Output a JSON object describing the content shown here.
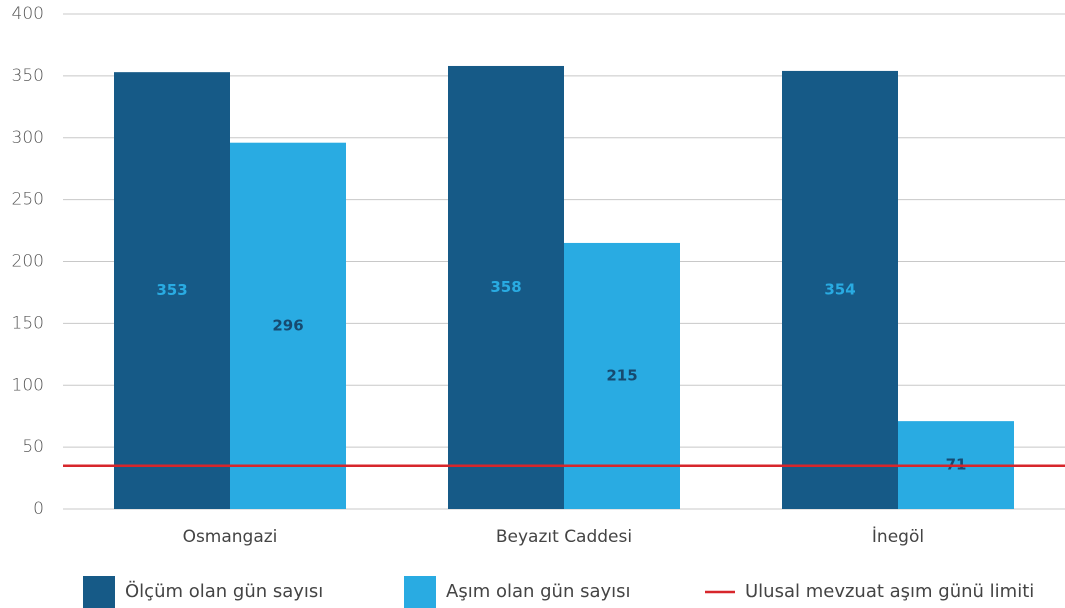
{
  "chart_data": {
    "type": "bar",
    "categories": [
      "Osmangazi",
      "Beyazıt Caddesi",
      "İnegöl"
    ],
    "series": [
      {
        "name": "Ölçüm olan gün sayısı",
        "color": "#165a87",
        "label_color": "#29abe2",
        "values": [
          353,
          358,
          354
        ]
      },
      {
        "name": "Aşım olan gün sayısı",
        "color": "#29abe2",
        "label_color": "#164a70",
        "values": [
          296,
          215,
          71
        ]
      }
    ],
    "reference_line": {
      "name": "Ulusal mevzuat aşım günü limiti",
      "value": 35,
      "color": "#d7262b"
    },
    "ylim": [
      0,
      400
    ],
    "yticks": [
      0,
      50,
      100,
      150,
      200,
      250,
      300,
      350,
      400
    ],
    "grid": true,
    "legend": "bottom"
  }
}
